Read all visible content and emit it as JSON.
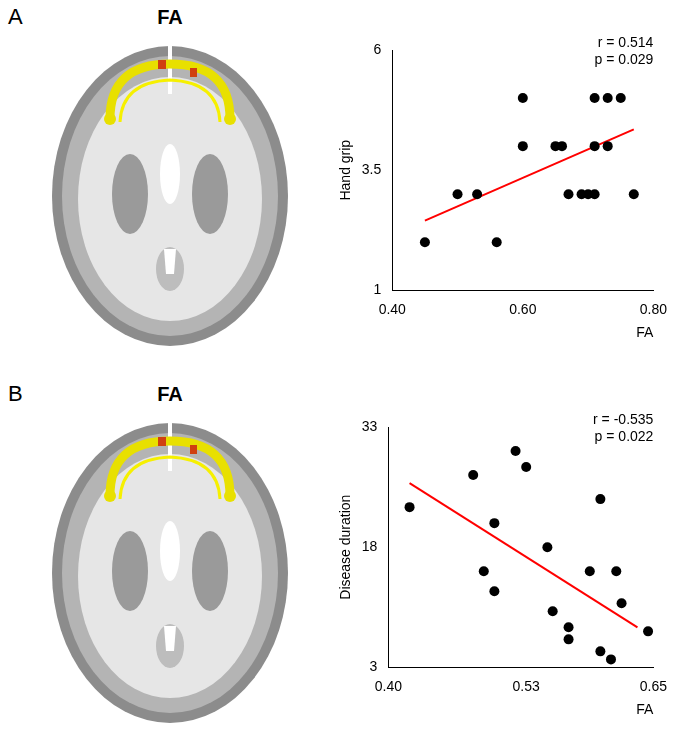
{
  "chart_data": [
    {
      "type": "scatter",
      "panel_label": "A",
      "image_label": "FA",
      "x_label": "FA",
      "y_label": "Hand grip",
      "annotations": [
        "r = 0.514",
        "p = 0.029"
      ],
      "xlim": [
        0.4,
        0.8
      ],
      "xticks": [
        {
          "value": 0.4,
          "label": "0.40"
        },
        {
          "value": 0.6,
          "label": "0.60"
        },
        {
          "value": 0.8,
          "label": "0.80"
        }
      ],
      "ylim": [
        1,
        6
      ],
      "yticks": [
        1,
        3.5,
        6
      ],
      "grid": false,
      "series": [
        {
          "type": "scatter",
          "color": "#000000",
          "marker": "circle",
          "x": [
            0.45,
            0.5,
            0.53,
            0.56,
            0.6,
            0.6,
            0.65,
            0.66,
            0.67,
            0.69,
            0.7,
            0.71,
            0.71,
            0.71,
            0.73,
            0.73,
            0.75,
            0.77
          ],
          "values": [
            2,
            3,
            3,
            2,
            4,
            5,
            4,
            4,
            3,
            3,
            3,
            3,
            4,
            5,
            4,
            5,
            5,
            3
          ]
        },
        {
          "type": "line",
          "color": "#ff0000",
          "line_style": "solid",
          "x": [
            0.45,
            0.77
          ],
          "values": [
            2.45,
            4.35
          ]
        }
      ]
    },
    {
      "type": "scatter",
      "panel_label": "B",
      "image_label": "FA",
      "x_label": "FA",
      "y_label": "Disease duration",
      "annotations": [
        "r = -0.535",
        "p = 0.022"
      ],
      "xlim": [
        0.4,
        0.65
      ],
      "xticks": [
        {
          "value": 0.4,
          "label": "0.40"
        },
        0.53,
        0.65
      ],
      "ylim": [
        3,
        33
      ],
      "yticks": [
        3,
        18,
        33
      ],
      "grid": false,
      "series": [
        {
          "type": "scatter",
          "color": "#000000",
          "marker": "circle",
          "x": [
            0.42,
            0.48,
            0.49,
            0.5,
            0.5,
            0.52,
            0.53,
            0.55,
            0.555,
            0.57,
            0.57,
            0.59,
            0.6,
            0.6,
            0.61,
            0.615,
            0.62,
            0.645
          ],
          "values": [
            23,
            27,
            15,
            21,
            12.5,
            30,
            28,
            18,
            10,
            8,
            6.5,
            15,
            5,
            24,
            4,
            15,
            11,
            7.5
          ]
        },
        {
          "type": "line",
          "color": "#ff0000",
          "line_style": "solid",
          "x": [
            0.42,
            0.635
          ],
          "values": [
            26,
            8
          ]
        }
      ]
    }
  ]
}
